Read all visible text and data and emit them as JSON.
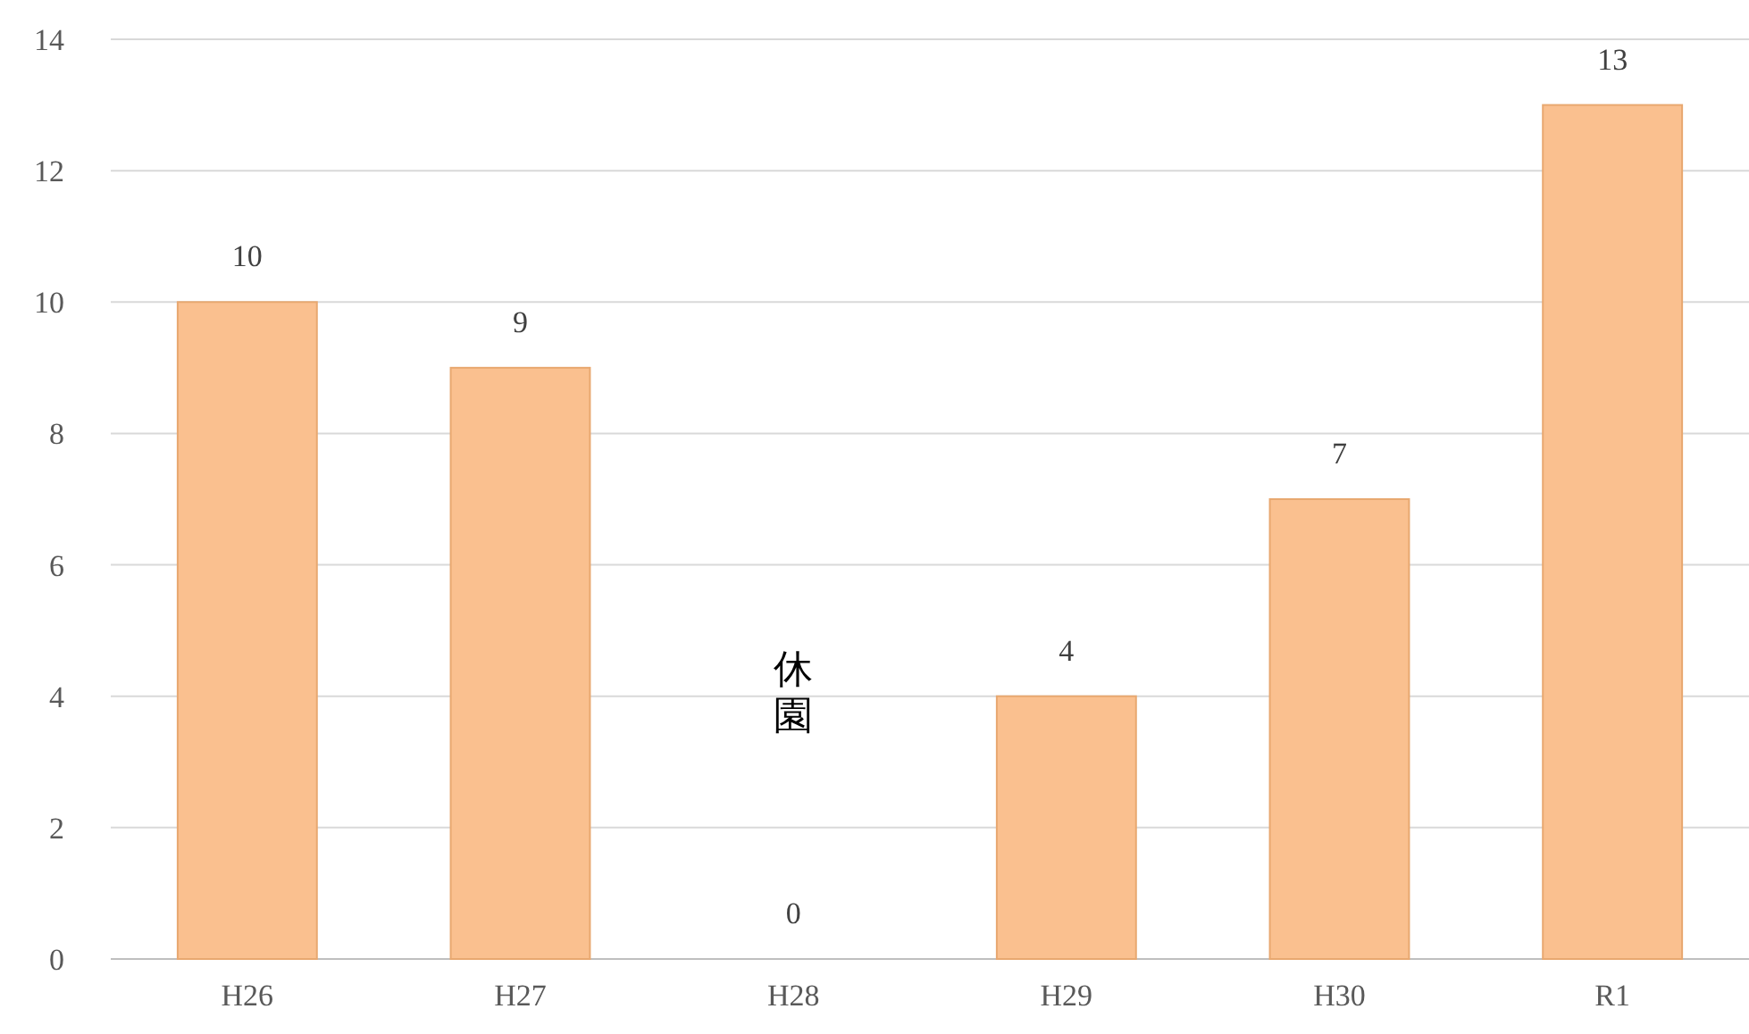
{
  "chart_data": {
    "type": "bar",
    "categories": [
      "H26",
      "H27",
      "H28",
      "H29",
      "H30",
      "R1"
    ],
    "values": [
      10,
      9,
      0,
      4,
      7,
      13
    ],
    "color": "#fac08f",
    "ylim": [
      0,
      14
    ],
    "yticks": [
      0,
      2,
      4,
      6,
      8,
      10,
      12,
      14
    ],
    "grid": "y",
    "data_labels": true,
    "annotations": [
      "休園"
    ]
  }
}
